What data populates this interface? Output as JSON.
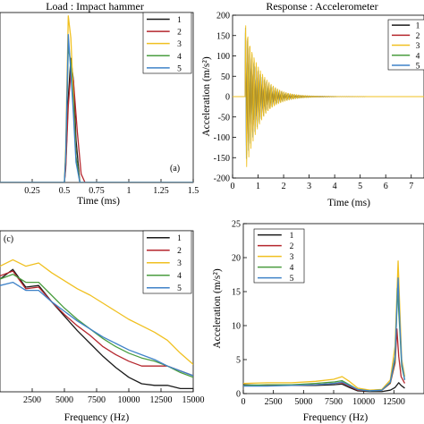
{
  "colors": {
    "s1": "#1a1a1a",
    "s2": "#b5262d",
    "s3": "#f0c020",
    "s4": "#4a9d3f",
    "s5": "#3f82c8"
  },
  "chart_data": [
    {
      "id": "load",
      "type": "line",
      "title": "Load : Impact hammer",
      "xlabel": "Time (ms)",
      "ylabel": "",
      "annotation": "(a)",
      "xlim": [
        0,
        1.5
      ],
      "ylim": [
        0,
        1
      ],
      "xticks": [
        "0.25",
        "0.5",
        "0.75",
        "1",
        "1.25",
        "1.5"
      ],
      "yticks": [],
      "grid": false,
      "legend": "top-right",
      "series": [
        {
          "name": "1",
          "x": [
            0,
            0.5,
            0.51,
            0.53,
            0.55,
            0.57,
            0.59,
            0.62,
            1.5
          ],
          "y": [
            0,
            0,
            0.1,
            0.5,
            0.73,
            0.6,
            0.25,
            0,
            0
          ]
        },
        {
          "name": "2",
          "x": [
            0,
            0.5,
            0.51,
            0.53,
            0.55,
            0.57,
            0.6,
            0.63,
            0.66,
            1.5
          ],
          "y": [
            0,
            0,
            0.08,
            0.45,
            0.65,
            0.6,
            0.3,
            0.05,
            0,
            0
          ]
        },
        {
          "name": "3",
          "x": [
            0,
            0.5,
            0.51,
            0.53,
            0.55,
            0.57,
            0.59,
            0.62,
            1.5
          ],
          "y": [
            0,
            0,
            0.2,
            0.98,
            0.85,
            0.5,
            0.15,
            0,
            0
          ]
        },
        {
          "name": "4",
          "x": [
            0,
            0.5,
            0.51,
            0.53,
            0.55,
            0.57,
            0.59,
            0.62,
            1.5
          ],
          "y": [
            0,
            0,
            0.15,
            0.8,
            0.7,
            0.45,
            0.15,
            0,
            0
          ]
        },
        {
          "name": "5",
          "x": [
            0,
            0.5,
            0.51,
            0.53,
            0.55,
            0.57,
            0.59,
            0.62,
            1.5
          ],
          "y": [
            0,
            0,
            0.15,
            0.87,
            0.65,
            0.4,
            0.12,
            0,
            0
          ]
        }
      ]
    },
    {
      "id": "response",
      "type": "line",
      "title": "Response : Accelerometer",
      "xlabel": "Time (ms)",
      "ylabel": "Acceleration (m/s²)",
      "xlim": [
        0,
        7.5
      ],
      "ylim": [
        -200,
        200
      ],
      "xticks": [
        "0",
        "1",
        "2",
        "3",
        "4",
        "5",
        "6",
        "7"
      ],
      "yticks": [
        "-200",
        "-150",
        "-100",
        "-50",
        "0",
        "50",
        "100",
        "150",
        "200"
      ],
      "grid": false,
      "legend": "top-right",
      "signal": {
        "onset_ms": 0.5,
        "peak_amplitude": 190,
        "decay_ms": 0.55,
        "cycles_per_ms": 12
      },
      "series": [
        {
          "name": "1"
        },
        {
          "name": "2"
        },
        {
          "name": "3"
        },
        {
          "name": "4"
        },
        {
          "name": "5"
        }
      ]
    },
    {
      "id": "load-spectrum",
      "type": "line",
      "title": "",
      "xlabel": "Frequency (Hz)",
      "ylabel": "",
      "annotation": "(c)",
      "xlim": [
        0,
        15000
      ],
      "ylim": [
        0,
        1
      ],
      "xticks": [
        "2500",
        "5000",
        "7500",
        "10000",
        "12500",
        "15000"
      ],
      "yticks": [],
      "grid": false,
      "legend": "top-right",
      "series": [
        {
          "name": "1",
          "x": [
            0,
            1000,
            2000,
            3000,
            4000,
            5000,
            6000,
            7000,
            8000,
            9000,
            10000,
            11000,
            12000,
            13000,
            14000,
            15000
          ],
          "y": [
            0.7,
            0.76,
            0.65,
            0.66,
            0.56,
            0.47,
            0.38,
            0.3,
            0.22,
            0.15,
            0.09,
            0.05,
            0.04,
            0.04,
            0.02,
            0.02
          ]
        },
        {
          "name": "2",
          "x": [
            0,
            1000,
            2000,
            3000,
            4000,
            5000,
            6000,
            7000,
            8000,
            9000,
            10000,
            11000,
            12000,
            13000,
            14000,
            15000
          ],
          "y": [
            0.72,
            0.75,
            0.64,
            0.65,
            0.56,
            0.48,
            0.41,
            0.35,
            0.28,
            0.23,
            0.19,
            0.16,
            0.16,
            0.16,
            0.13,
            0.1
          ]
        },
        {
          "name": "3",
          "x": [
            0,
            1000,
            2000,
            3000,
            4000,
            5000,
            6000,
            7000,
            8000,
            9000,
            10000,
            11000,
            12000,
            13000,
            14000,
            15000
          ],
          "y": [
            0.78,
            0.82,
            0.78,
            0.8,
            0.74,
            0.69,
            0.64,
            0.6,
            0.55,
            0.5,
            0.45,
            0.41,
            0.37,
            0.32,
            0.24,
            0.17
          ]
        },
        {
          "name": "4",
          "x": [
            0,
            1000,
            2000,
            3000,
            4000,
            5000,
            6000,
            7000,
            8000,
            9000,
            10000,
            11000,
            12000,
            13000,
            14000,
            15000
          ],
          "y": [
            0.7,
            0.73,
            0.68,
            0.68,
            0.6,
            0.52,
            0.45,
            0.39,
            0.33,
            0.28,
            0.24,
            0.21,
            0.19,
            0.16,
            0.12,
            0.09
          ]
        },
        {
          "name": "5",
          "x": [
            0,
            1000,
            2000,
            3000,
            4000,
            5000,
            6000,
            7000,
            8000,
            9000,
            10000,
            11000,
            12000,
            13000,
            14000,
            15000
          ],
          "y": [
            0.66,
            0.68,
            0.63,
            0.63,
            0.56,
            0.5,
            0.44,
            0.39,
            0.34,
            0.3,
            0.26,
            0.23,
            0.2,
            0.16,
            0.13,
            0.1
          ]
        }
      ]
    },
    {
      "id": "response-spectrum",
      "type": "line",
      "title": "",
      "xlabel": "Frequency (Hz)",
      "ylabel": "Acceleration (m/s²)",
      "xlim": [
        0,
        15000
      ],
      "ylim": [
        0,
        25
      ],
      "xticks": [
        "0",
        "2500",
        "5000",
        "7500",
        "10000",
        "12500"
      ],
      "yticks": [
        "0",
        "5",
        "10",
        "15",
        "20",
        "25"
      ],
      "grid": false,
      "legend": "top-left",
      "series": [
        {
          "name": "1",
          "x": [
            0,
            2000,
            4000,
            6000,
            7500,
            8200,
            8800,
            9500,
            10500,
            11500,
            12200,
            12600,
            12900,
            13100,
            13400
          ],
          "y": [
            1.3,
            1.2,
            1.2,
            1.2,
            1.3,
            1.4,
            0.9,
            0.4,
            0.3,
            0.3,
            0.5,
            0.9,
            1.6,
            1.2,
            0.8
          ]
        },
        {
          "name": "2",
          "x": [
            0,
            2000,
            4000,
            6000,
            7500,
            8200,
            8800,
            9500,
            10500,
            11500,
            12200,
            12600,
            12750,
            12900,
            13100,
            13400
          ],
          "y": [
            1.2,
            1.2,
            1.2,
            1.3,
            1.5,
            1.6,
            1.1,
            0.5,
            0.4,
            0.5,
            1.5,
            4.5,
            9.5,
            5.5,
            2.5,
            1.5
          ]
        },
        {
          "name": "3",
          "x": [
            0,
            2000,
            4000,
            6000,
            7500,
            8200,
            8800,
            9500,
            10500,
            11500,
            12200,
            12600,
            12850,
            13000,
            13150,
            13400
          ],
          "y": [
            1.5,
            1.6,
            1.6,
            1.8,
            2.1,
            2.5,
            1.8,
            0.8,
            0.5,
            0.6,
            2,
            7,
            19.5,
            12,
            5,
            2.5
          ]
        },
        {
          "name": "4",
          "x": [
            0,
            2000,
            4000,
            6000,
            7500,
            8200,
            8800,
            9500,
            10500,
            11500,
            12200,
            12600,
            12800,
            13000,
            13150,
            13400
          ],
          "y": [
            1.2,
            1.3,
            1.3,
            1.5,
            1.7,
            1.9,
            1.3,
            0.6,
            0.4,
            0.5,
            1.6,
            5,
            15.5,
            9,
            4,
            2
          ]
        },
        {
          "name": "5",
          "x": [
            0,
            2000,
            4000,
            6000,
            7500,
            8200,
            8800,
            9500,
            10500,
            11500,
            12200,
            12600,
            12850,
            13000,
            13150,
            13400
          ],
          "y": [
            1.1,
            1.1,
            1.2,
            1.3,
            1.5,
            1.7,
            1.2,
            0.6,
            0.4,
            0.5,
            1.7,
            5.5,
            17,
            10,
            4.5,
            2
          ]
        }
      ]
    }
  ]
}
